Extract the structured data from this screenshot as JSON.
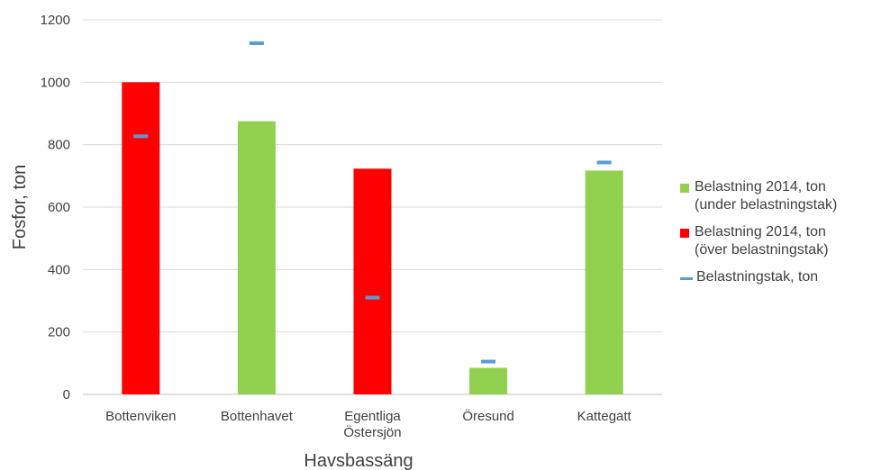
{
  "chart_data": {
    "type": "bar",
    "xlabel": "Havsbassäng",
    "ylabel": "Fosfor, ton",
    "ylim": [
      0,
      1200
    ],
    "yticks": [
      0,
      200,
      400,
      600,
      800,
      1000,
      1200
    ],
    "grid": true,
    "legend_position": "right",
    "categories": [
      {
        "label": "Bottenviken"
      },
      {
        "label": "Bottenhavet"
      },
      {
        "label": "Egentliga\nÖstersjön"
      },
      {
        "label": "Öresund"
      },
      {
        "label": "Kattegatt"
      }
    ],
    "series": [
      {
        "name": "Belastning 2014, ton\n(under belastningstak)",
        "kind": "bar",
        "color": "#92d050",
        "values": [
          null,
          875,
          null,
          85,
          717
        ]
      },
      {
        "name": "Belastning 2014, ton\n(över belastningstak)",
        "kind": "bar",
        "color": "#ff0000",
        "values": [
          1000,
          null,
          723,
          null,
          null
        ]
      },
      {
        "name": "Belastningstak, ton",
        "kind": "marker",
        "color": "#5b9bd5",
        "values": [
          827,
          1125,
          310,
          105,
          743
        ]
      }
    ]
  }
}
